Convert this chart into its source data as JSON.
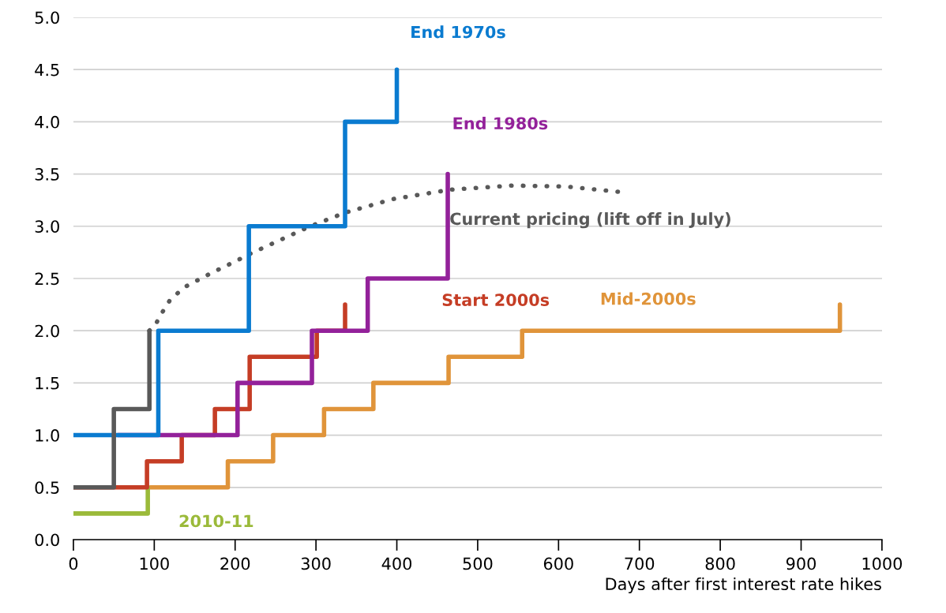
{
  "chart_data": {
    "type": "step",
    "xlabel": "Days after first interest rate hikes",
    "xlim": [
      0,
      1000
    ],
    "xticks": [
      0,
      100,
      200,
      300,
      400,
      500,
      600,
      700,
      800,
      900,
      1000
    ],
    "ylim": [
      0,
      5
    ],
    "yticks": [
      {
        "value": 0,
        "label": "0.0"
      },
      {
        "value": 0.5,
        "label": "0.5"
      },
      {
        "value": 1,
        "label": "1.0"
      },
      {
        "value": 1.5,
        "label": "1.5"
      },
      {
        "value": 2,
        "label": "2.0"
      },
      {
        "value": 2.5,
        "label": "2.5"
      },
      {
        "value": 3,
        "label": "3.0"
      },
      {
        "value": 3.5,
        "label": "3.5"
      },
      {
        "value": 4,
        "label": "4.0"
      },
      {
        "value": 4.5,
        "label": "4.5"
      },
      {
        "value": 5,
        "label": "5.0"
      }
    ],
    "grid": "y",
    "legend": false,
    "line_style": "solid",
    "series": [
      {
        "name": "Current pricing (lift off in July)",
        "type": "line",
        "line_style": "dotted",
        "color": "#595959",
        "x": [
          94,
          101,
          107,
          120,
          138,
          170,
          202,
          214,
          290,
          336,
          395,
          466,
          544,
          610,
          674
        ],
        "values": [
          2.0,
          2.05,
          2.14,
          2.3,
          2.42,
          2.55,
          2.67,
          2.72,
          2.99,
          3.13,
          3.26,
          3.35,
          3.39,
          3.38,
          3.33
        ]
      },
      {
        "name": "Mid-2000s",
        "color": "#e0943a",
        "x": [
          95,
          191,
          247,
          310,
          371,
          464,
          555,
          948
        ],
        "values": [
          0.5,
          0.75,
          1.0,
          1.25,
          1.5,
          1.75,
          2.0,
          2.25
        ]
      },
      {
        "name": "2010-11",
        "color": "#9bba3a",
        "x": [
          0,
          92
        ],
        "values": [
          0.25,
          0.5
        ]
      },
      {
        "name": "Start 2000s",
        "color": "#c53d25",
        "x": [
          0,
          91,
          134,
          175,
          218,
          301,
          336
        ],
        "values": [
          0.5,
          0.75,
          1.0,
          1.25,
          1.75,
          2.0,
          2.25
        ]
      },
      {
        "name": "End 1980s",
        "color": "#93219a",
        "x": [
          55,
          203,
          295,
          364,
          463
        ],
        "values": [
          1.0,
          1.5,
          2.0,
          2.5,
          3.5
        ]
      },
      {
        "name": "End 1970s",
        "color": "#0a7bd0",
        "x": [
          0,
          105,
          217,
          336,
          400
        ],
        "values": [
          1.0,
          2.0,
          3.0,
          4.0,
          4.5
        ]
      },
      {
        "color": "#595959",
        "x": [
          0,
          50,
          94
        ],
        "values": [
          0.5,
          1.25,
          2.0
        ]
      }
    ]
  }
}
